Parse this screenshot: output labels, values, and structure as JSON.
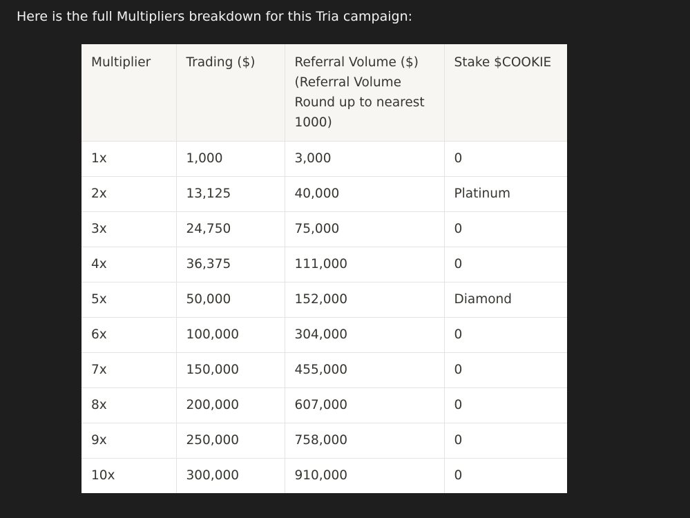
{
  "intro_text": "Here is the full Multipliers breakdown for this Tria campaign:",
  "table": {
    "headers": [
      "Multiplier",
      "Trading ($)",
      "Referral Volume  ($) (Referral Volume Round up to nearest 1000)",
      "Stake $COOKIE"
    ],
    "rows": [
      [
        "1x",
        "1,000",
        "3,000",
        "0"
      ],
      [
        "2x",
        "13,125",
        "40,000",
        "Platinum"
      ],
      [
        "3x",
        "24,750",
        "75,000",
        "0"
      ],
      [
        "4x",
        "36,375",
        "111,000",
        "0"
      ],
      [
        "5x",
        "50,000",
        "152,000",
        "Diamond"
      ],
      [
        "6x",
        "100,000",
        "304,000",
        "0"
      ],
      [
        "7x",
        "150,000",
        "455,000",
        "0"
      ],
      [
        "8x",
        "200,000",
        "607,000",
        "0"
      ],
      [
        "9x",
        "250,000",
        "758,000",
        "0"
      ],
      [
        "10x",
        "300,000",
        "910,000",
        "0"
      ]
    ]
  }
}
